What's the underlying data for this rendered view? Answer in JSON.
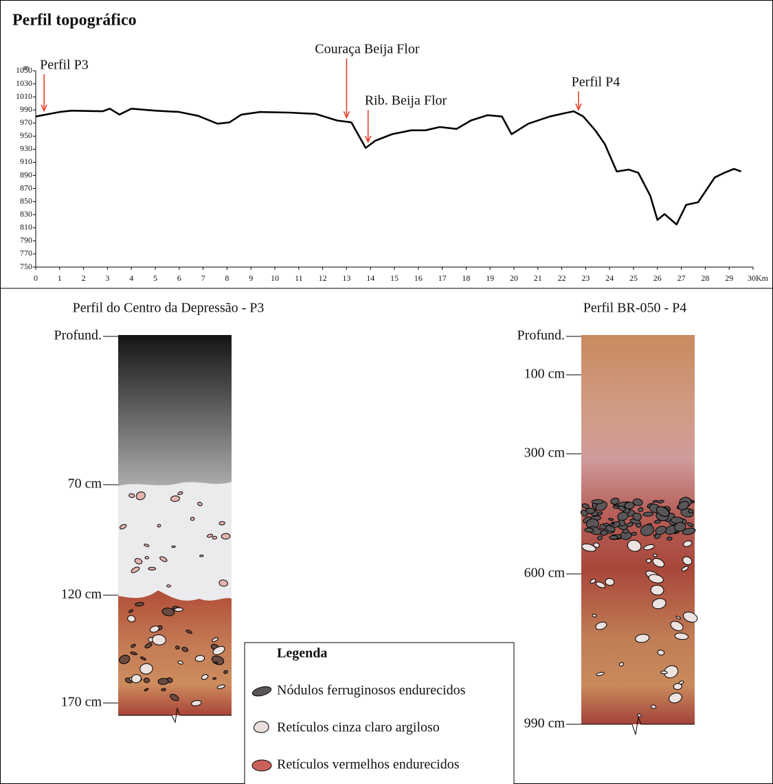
{
  "chart_data": {
    "type": "line",
    "title": "Perfil topográfico",
    "y_unit": "m",
    "x": [
      0,
      1,
      1.5,
      2.8,
      3.1,
      3.5,
      4,
      5,
      6,
      6.8,
      7.6,
      8.1,
      8.6,
      9.4,
      10.6,
      11.7,
      12.6,
      13.2,
      13.4,
      13.8,
      14.2,
      14.9,
      15.7,
      16.3,
      16.9,
      17.6,
      18.2,
      18.9,
      19.5,
      19.9,
      20.6,
      21.5,
      22.1,
      22.5,
      22.9,
      23.4,
      23.8,
      24.3,
      24.8,
      25.2,
      25.7,
      26.0,
      26.3,
      26.8,
      27.2,
      27.7,
      28.4,
      28.8,
      29.2,
      29.5
    ],
    "values": [
      980,
      987,
      989,
      988,
      992,
      983,
      992,
      989,
      987,
      981,
      969,
      971,
      983,
      987,
      986,
      984,
      974,
      971,
      958,
      932,
      943,
      953,
      959,
      959,
      964,
      961,
      974,
      982,
      980,
      953,
      969,
      980,
      985,
      988,
      980,
      959,
      938,
      896,
      899,
      894,
      859,
      822,
      831,
      815,
      845,
      849,
      887,
      894,
      900,
      896
    ],
    "color": "#000000",
    "xlim": [
      0,
      30
    ],
    "xticks": [
      0,
      1,
      2,
      3,
      4,
      5,
      6,
      7,
      8,
      9,
      10,
      11,
      12,
      13,
      14,
      15,
      16,
      17,
      18,
      19,
      20,
      21,
      22,
      23,
      24,
      25,
      26,
      27,
      28,
      29,
      {
        "value": 30,
        "label": "30Km"
      }
    ],
    "ylim": [
      750,
      1050
    ],
    "yticks": [
      750,
      770,
      790,
      810,
      830,
      850,
      870,
      890,
      910,
      930,
      950,
      970,
      990,
      1010,
      1030,
      1050
    ],
    "annotations": [
      {
        "text": "Perfil P3",
        "x": 0.35
      },
      {
        "text": "Couraça Beija Flor",
        "x": 13
      },
      {
        "text": "Rib. Beija Flor",
        "x": 13.9
      },
      {
        "text": "Perfil P4",
        "x": 22.7
      }
    ],
    "annotation_color": "#e8412c"
  },
  "profiles": [
    {
      "title": "Perfil do Centro da Depressão - P3",
      "depth_labels": [
        "Profund.",
        "70 cm",
        "120 cm",
        "170 cm"
      ]
    },
    {
      "title": "Perfil BR-050 - P4",
      "depth_labels": [
        "Profund.",
        "100 cm",
        "300 cm",
        "600 cm",
        "990 cm"
      ]
    }
  ],
  "legend": {
    "title": "Legenda",
    "items": [
      "Nódulos ferruginosos endurecidos",
      "Retículos cinza claro argiloso",
      "Retículos vermelhos endurecidos"
    ]
  }
}
